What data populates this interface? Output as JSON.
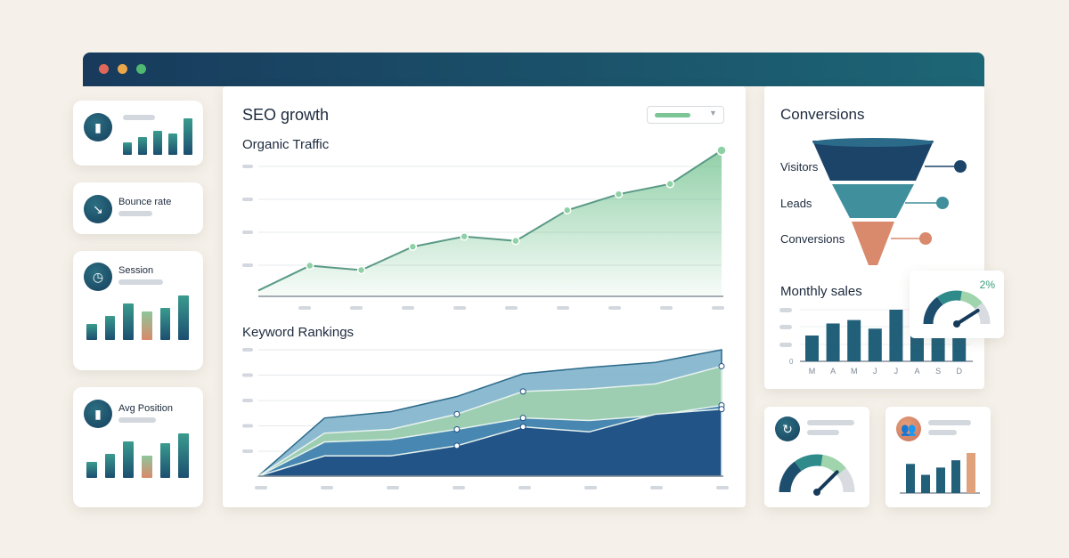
{
  "window": {
    "dots": [
      "#e0685a",
      "#eba84a",
      "#4fb871"
    ]
  },
  "left_cards": [
    {
      "icon": "bar-chart-icon",
      "label": "",
      "bars": [
        2,
        3,
        4,
        3.5,
        6
      ]
    },
    {
      "icon": "trend-down-up-icon",
      "label": "Bounce rate"
    },
    {
      "icon": "clock-icon",
      "label": "Session",
      "bars": [
        2,
        3,
        4.5,
        3.5,
        4,
        5.5
      ],
      "highlight": 3
    },
    {
      "icon": "bar-chart-icon",
      "label": "Avg Position",
      "bars": [
        2,
        3,
        4.5,
        2.8,
        4.3,
        5.5
      ],
      "highlight": 3
    }
  ],
  "main": {
    "title": "SEO growth",
    "organic_title": "Organic Traffic",
    "keyword_title": "Keyword Rankings"
  },
  "chart_data": [
    {
      "type": "area",
      "title": "Organic Traffic",
      "x": [
        1,
        2,
        3,
        4,
        5,
        6,
        7,
        8,
        9,
        10
      ],
      "values": [
        4,
        21,
        18,
        34,
        41,
        38,
        59,
        70,
        77,
        100
      ],
      "ylim": [
        0,
        100
      ],
      "grid": true,
      "color": "#5fb37e"
    },
    {
      "type": "area",
      "title": "Keyword Rankings",
      "x": [
        1,
        2,
        3,
        4,
        5,
        6,
        7,
        8
      ],
      "series": [
        {
          "values": [
            0,
            46,
            51,
            63,
            81,
            86,
            90,
            100
          ],
          "color": "#7fb3cc"
        },
        {
          "values": [
            0,
            34,
            37,
            49,
            67,
            69,
            73,
            87
          ],
          "color": "#9ed0ae"
        },
        {
          "values": [
            0,
            27,
            29,
            37,
            46,
            44,
            48,
            56
          ],
          "color": "#3f7fb0"
        },
        {
          "values": [
            0,
            16,
            16,
            24,
            39,
            35,
            49,
            53
          ],
          "color": "#1e4f84"
        }
      ],
      "ylim": [
        0,
        100
      ],
      "grid": true
    },
    {
      "type": "bar",
      "title": "Monthly sales",
      "categories": [
        "M",
        "A",
        "M",
        "J",
        "J",
        "A",
        "S",
        "D"
      ],
      "values": [
        1.5,
        2.2,
        2.4,
        1.9,
        3,
        2.1,
        1.8,
        2
      ],
      "ylim": [
        0,
        3
      ],
      "ytick_labels": [
        "0"
      ]
    }
  ],
  "conversions": {
    "title": "Conversions",
    "stages": [
      {
        "label": "Visitors",
        "color": "#1b4468"
      },
      {
        "label": "Leads",
        "color": "#3f8f9c"
      },
      {
        "label": "Conversions",
        "color": "#d98a6c"
      }
    ]
  },
  "monthly_sales": {
    "title": "Monthly sales"
  },
  "gauge_popup": {
    "value": "2%",
    "level": 0.82
  },
  "bottom_cards": [
    {
      "icon": "refresh-icon",
      "level": 0.75
    },
    {
      "icon": "users-icon",
      "bars": [
        4,
        2.5,
        3.5,
        4.5,
        5.5
      ],
      "highlight": 4
    }
  ]
}
